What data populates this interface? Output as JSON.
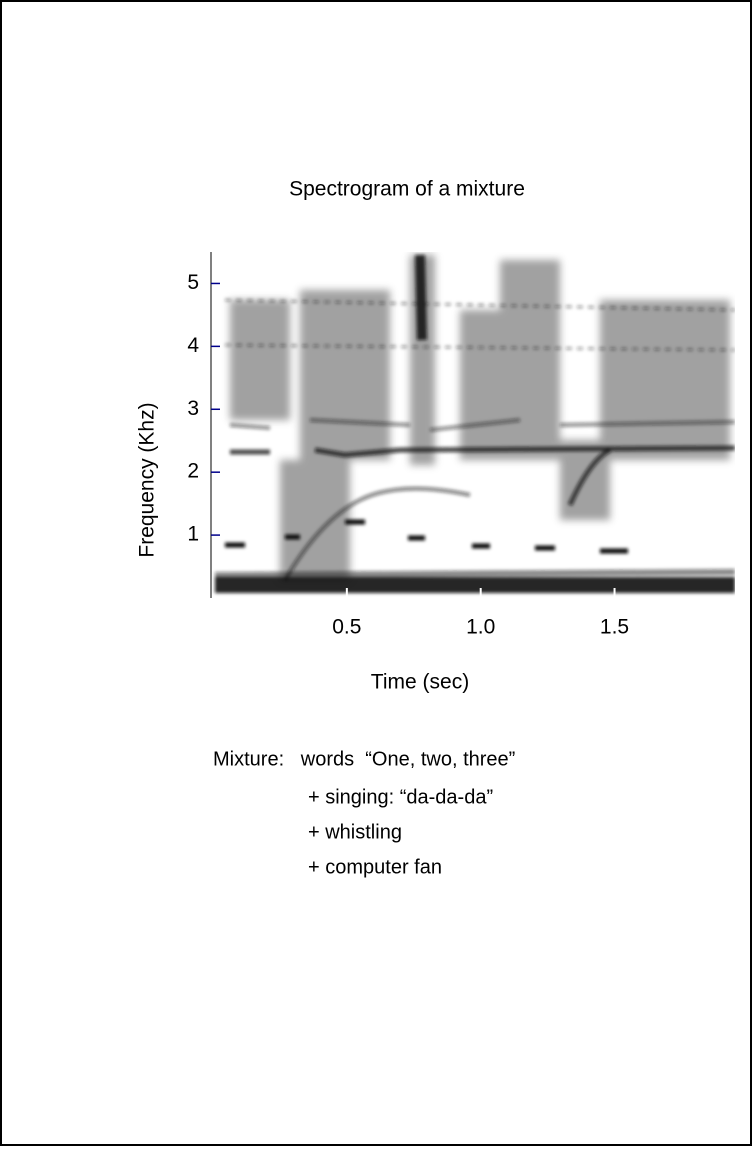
{
  "chart_data": {
    "type": "heatmap",
    "title": "Spectrogram of a mixture",
    "x_label": "Time (sec)",
    "y_label": "Frequency (Khz)",
    "xlim": [
      0,
      1.95
    ],
    "ylim": [
      0,
      5.5
    ],
    "xticks": [
      0.5,
      {
        "value": 1,
        "label": "1.0"
      },
      1.5
    ],
    "yticks": [
      1,
      2,
      3,
      4,
      5
    ],
    "notes": [
      "Mixture:   words  “One, two, three”",
      "+ singing: “da-da-da”",
      "+ whistling",
      "+ computer fan"
    ]
  }
}
